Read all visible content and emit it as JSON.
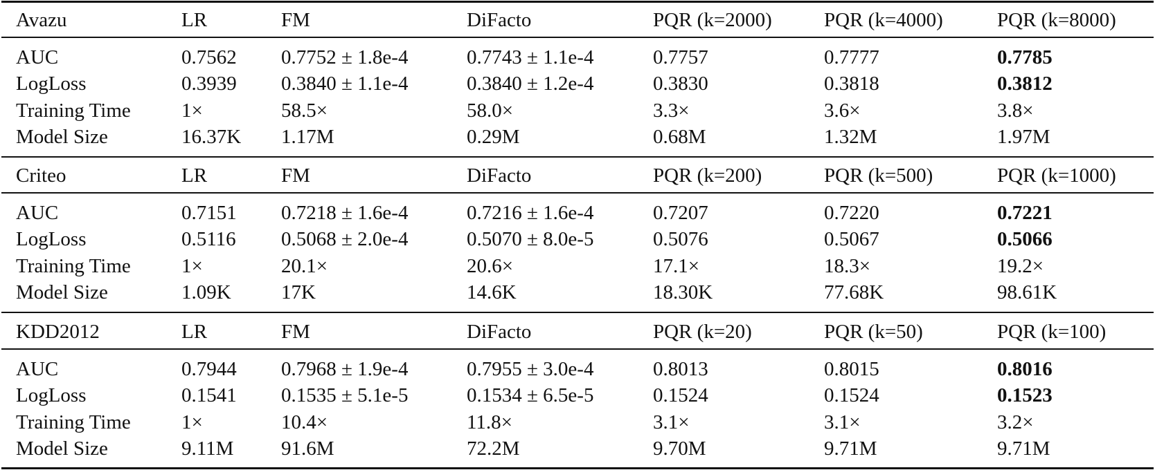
{
  "blocks": [
    {
      "header": [
        "Avazu",
        "LR",
        "FM",
        "DiFacto",
        "PQR (k=2000)",
        "PQR (k=4000)",
        "PQR (k=8000)"
      ],
      "rows": [
        [
          "AUC",
          "0.7562",
          "0.7752 ± 1.8e-4",
          "0.7743 ± 1.1e-4",
          "0.7757",
          "0.7777",
          "0.7785"
        ],
        [
          "LogLoss",
          "0.3939",
          "0.3840 ± 1.1e-4",
          "0.3840 ± 1.2e-4",
          "0.3830",
          "0.3818",
          "0.3812"
        ],
        [
          "Training Time",
          "1×",
          "58.5×",
          "58.0×",
          "3.3×",
          "3.6×",
          "3.8×"
        ],
        [
          "Model Size",
          "16.37K",
          "1.17M",
          "0.29M",
          "0.68M",
          "1.32M",
          "1.97M"
        ]
      ],
      "bold": [
        [
          0,
          6
        ],
        [
          1,
          6
        ]
      ]
    },
    {
      "header": [
        "Criteo",
        "LR",
        "FM",
        "DiFacto",
        "PQR (k=200)",
        "PQR (k=500)",
        "PQR (k=1000)"
      ],
      "rows": [
        [
          "AUC",
          "0.7151",
          "0.7218 ± 1.6e-4",
          "0.7216 ± 1.6e-4",
          "0.7207",
          "0.7220",
          "0.7221"
        ],
        [
          "LogLoss",
          "0.5116",
          "0.5068 ± 2.0e-4",
          "0.5070 ± 8.0e-5",
          "0.5076",
          "0.5067",
          "0.5066"
        ],
        [
          "Training Time",
          "1×",
          "20.1×",
          "20.6×",
          "17.1×",
          "18.3×",
          "19.2×"
        ],
        [
          "Model Size",
          "1.09K",
          "17K",
          "14.6K",
          "18.30K",
          "77.68K",
          "98.61K"
        ]
      ],
      "bold": [
        [
          0,
          6
        ],
        [
          1,
          6
        ]
      ]
    },
    {
      "header": [
        "KDD2012",
        "LR",
        "FM",
        "DiFacto",
        "PQR (k=20)",
        "PQR (k=50)",
        "PQR (k=100)"
      ],
      "rows": [
        [
          "AUC",
          "0.7944",
          "0.7968 ± 1.9e-4",
          "0.7955 ± 3.0e-4",
          "0.8013",
          "0.8015",
          "0.8016"
        ],
        [
          "LogLoss",
          "0.1541",
          "0.1535 ± 5.1e-5",
          "0.1534 ± 6.5e-5",
          "0.1524",
          "0.1524",
          "0.1523"
        ],
        [
          "Training Time",
          "1×",
          "10.4×",
          "11.8×",
          "3.1×",
          "3.1×",
          "3.2×"
        ],
        [
          "Model Size",
          "9.11M",
          "91.6M",
          "72.2M",
          "9.70M",
          "9.71M",
          "9.71M"
        ]
      ],
      "bold": [
        [
          0,
          6
        ],
        [
          1,
          6
        ]
      ]
    }
  ]
}
